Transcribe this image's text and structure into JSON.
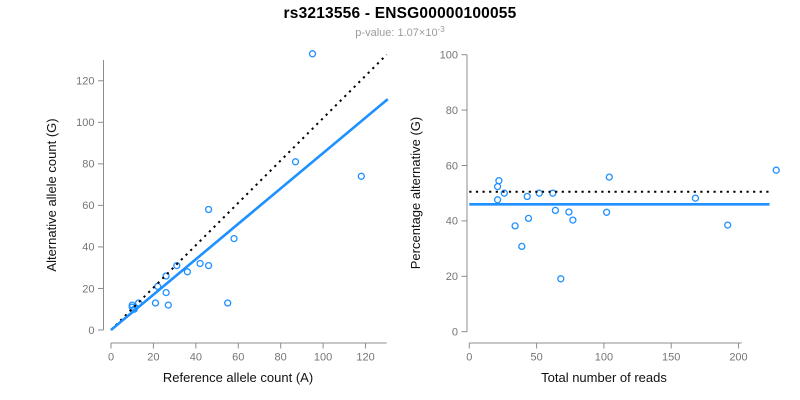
{
  "header": {
    "title": "rs3213556 - ENSG00000100055",
    "subtitle_base": "p-value: 1.07×10",
    "subtitle_exponent": "-3"
  },
  "colors": {
    "point_blue": "#1E90FF",
    "fitted_line_blue": "#1E90FF",
    "expected_line_black": "#000000",
    "axis_gray": "#8c8c8c",
    "tick_label_gray": "#757575",
    "subtitle_gray": "#9b9b9b"
  },
  "chart_data": [
    {
      "type": "scatter",
      "panel": "left",
      "xlabel": "Reference allele count (A)",
      "ylabel": "Alternative allele count (G)",
      "xlim": [
        0,
        130
      ],
      "ylim": [
        0,
        130
      ],
      "x_ticks": [
        0,
        20,
        40,
        60,
        80,
        100,
        120
      ],
      "y_ticks": [
        0,
        20,
        40,
        60,
        80,
        100,
        120
      ],
      "grid": false,
      "point_color": "#1E90FF",
      "points": [
        [
          10,
          12
        ],
        [
          10,
          11
        ],
        [
          13,
          13
        ],
        [
          11,
          10
        ],
        [
          22,
          21
        ],
        [
          26,
          26
        ],
        [
          31,
          31
        ],
        [
          26,
          18
        ],
        [
          36,
          28
        ],
        [
          42,
          32
        ],
        [
          46,
          31
        ],
        [
          21,
          13
        ],
        [
          27,
          12
        ],
        [
          55,
          13
        ],
        [
          46,
          58
        ],
        [
          58,
          44
        ],
        [
          87,
          81
        ],
        [
          118,
          74
        ],
        [
          95,
          133
        ]
      ],
      "lines": [
        {
          "style": "dotted",
          "color": "#000000",
          "slope": 1.02,
          "intercept": 0,
          "x_range": [
            0,
            130
          ]
        },
        {
          "style": "solid",
          "color": "#1E90FF",
          "slope": 0.852,
          "intercept": 0,
          "x_range": [
            0,
            130.5
          ]
        }
      ]
    },
    {
      "type": "scatter",
      "panel": "right",
      "xlabel": "Total number of reads",
      "ylabel": "Percentage alternative (G)",
      "xlim": [
        0,
        240
      ],
      "ylim": [
        0,
        100
      ],
      "x_ticks": [
        0,
        50,
        100,
        150,
        200
      ],
      "y_ticks": [
        0,
        20,
        40,
        60,
        80,
        100
      ],
      "grid": false,
      "point_color": "#1E90FF",
      "points": [
        [
          22,
          54.5
        ],
        [
          21,
          52.4
        ],
        [
          26,
          50.0
        ],
        [
          21,
          47.6
        ],
        [
          43,
          48.8
        ],
        [
          52,
          50.0
        ],
        [
          62,
          50.0
        ],
        [
          44,
          40.9
        ],
        [
          64,
          43.8
        ],
        [
          74,
          43.2
        ],
        [
          77,
          40.3
        ],
        [
          34,
          38.2
        ],
        [
          39,
          30.8
        ],
        [
          68,
          19.1
        ],
        [
          104,
          55.8
        ],
        [
          102,
          43.1
        ],
        [
          168,
          48.2
        ],
        [
          192,
          38.5
        ],
        [
          228,
          58.3
        ]
      ],
      "lines": [
        {
          "style": "dotted",
          "color": "#000000",
          "y": 50.5,
          "x_range": [
            0,
            223
          ]
        },
        {
          "style": "solid",
          "color": "#1E90FF",
          "y": 46.0,
          "x_range": [
            0,
            223
          ]
        }
      ]
    }
  ]
}
